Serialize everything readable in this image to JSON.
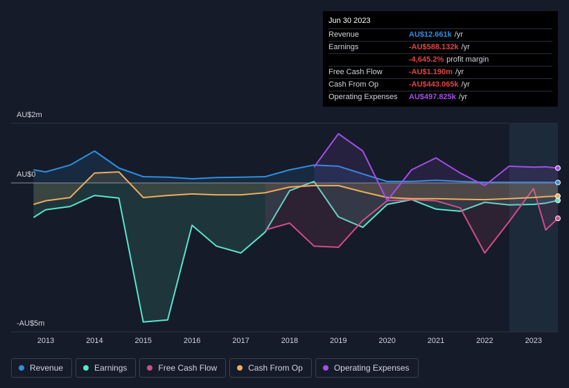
{
  "chart_data": {
    "type": "line",
    "x": [
      2012.75,
      2013.0,
      2013.5,
      2014.0,
      2014.5,
      2015.0,
      2015.5,
      2016.0,
      2016.5,
      2017.0,
      2017.5,
      2018.0,
      2018.5,
      2019.0,
      2019.5,
      2020.0,
      2020.5,
      2021.0,
      2021.5,
      2022.0,
      2022.5,
      2023.0,
      2023.25,
      2023.5
    ],
    "xlim": [
      2012.29,
      2023.5
    ],
    "xticks": [
      2013,
      2014,
      2015,
      2016,
      2017,
      2018,
      2019,
      2020,
      2021,
      2022,
      2023
    ],
    "ylim": [
      -5,
      2
    ],
    "yticks": [
      {
        "value": 2,
        "label": "AU$2m"
      },
      {
        "value": 0,
        "label": "AU$0"
      },
      {
        "value": -5,
        "label": "-AU$5m"
      }
    ],
    "grid": true,
    "series": [
      {
        "name": "Revenue",
        "color": "#2e8fdf",
        "values": [
          0.44,
          0.37,
          0.6,
          1.07,
          0.5,
          0.21,
          0.19,
          0.14,
          0.18,
          0.19,
          0.21,
          0.44,
          0.6,
          0.56,
          0.3,
          0.05,
          0.05,
          0.09,
          0.05,
          0.02,
          0.02,
          0.02,
          0.02,
          0.013
        ]
      },
      {
        "name": "Earnings",
        "color": "#5ae4cb",
        "values": [
          -1.16,
          -0.9,
          -0.79,
          -0.42,
          -0.51,
          -4.67,
          -4.6,
          -1.42,
          -2.12,
          -2.35,
          -1.65,
          -0.26,
          0.05,
          -1.14,
          -1.49,
          -0.72,
          -0.56,
          -0.88,
          -0.95,
          -0.65,
          -0.74,
          -0.72,
          -0.68,
          -0.588
        ]
      },
      {
        "name": "Free Cash Flow",
        "color": "#d14d8a",
        "values": [
          null,
          null,
          null,
          null,
          null,
          null,
          null,
          null,
          null,
          null,
          -1.58,
          -1.35,
          -2.12,
          -2.16,
          -1.26,
          -0.6,
          -0.56,
          -0.6,
          -0.84,
          -2.35,
          -1.3,
          -0.19,
          -1.58,
          -1.19
        ]
      },
      {
        "name": "Cash From Op",
        "color": "#eeae5f",
        "values": [
          -0.72,
          -0.6,
          -0.49,
          0.33,
          0.37,
          -0.49,
          -0.42,
          -0.37,
          -0.4,
          -0.4,
          -0.33,
          -0.14,
          -0.09,
          -0.09,
          -0.3,
          -0.49,
          -0.53,
          -0.53,
          -0.55,
          -0.56,
          -0.53,
          -0.49,
          -0.46,
          -0.443
        ]
      },
      {
        "name": "Operating Expenses",
        "color": "#a34ee8",
        "values": [
          null,
          null,
          null,
          null,
          null,
          null,
          null,
          null,
          null,
          null,
          null,
          null,
          0.53,
          1.65,
          1.07,
          -0.6,
          0.44,
          0.84,
          0.33,
          -0.09,
          0.56,
          0.53,
          0.54,
          0.498
        ]
      }
    ],
    "tooltip": {
      "date": "Jun 30 2023",
      "rows": [
        {
          "label": "Revenue",
          "value": "AU$12.661k",
          "unit": "/yr",
          "color": "#2e8fdf"
        },
        {
          "label": "Earnings",
          "value": "-AU$588.132k",
          "unit": "/yr",
          "color": "#e04545"
        },
        {
          "label": null,
          "value": "-4,645.2%",
          "unit": "profit margin",
          "color": "#e04545"
        },
        {
          "label": "Free Cash Flow",
          "value": "-AU$1.190m",
          "unit": "/yr",
          "color": "#e04545"
        },
        {
          "label": "Cash From Op",
          "value": "-AU$443.065k",
          "unit": "/yr",
          "color": "#e04545"
        },
        {
          "label": "Operating Expenses",
          "value": "AU$497.825k",
          "unit": "/yr",
          "color": "#a34ee8"
        }
      ]
    }
  }
}
